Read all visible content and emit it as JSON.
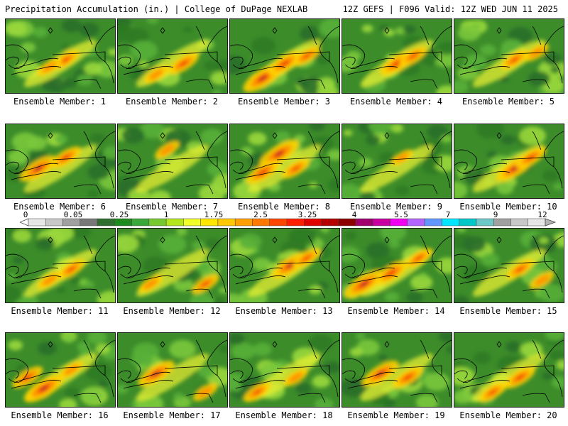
{
  "header": {
    "left": "Precipitation Accumulation (in.) | College of DuPage NEXLAB",
    "right": "12Z GEFS | F096 Valid: 12Z WED JUN 11 2025"
  },
  "member_label_prefix": "Ensemble Member: ",
  "members": [
    {
      "number": "1",
      "hot": [
        [
          0.55,
          0.55,
          0.6
        ],
        [
          0.4,
          0.65,
          0.5
        ]
      ]
    },
    {
      "number": "2",
      "hot": [
        [
          0.6,
          0.6,
          0.7
        ],
        [
          0.35,
          0.75,
          0.5
        ]
      ]
    },
    {
      "number": "3",
      "hot": [
        [
          0.3,
          0.8,
          1.0
        ],
        [
          0.5,
          0.6,
          0.8
        ],
        [
          0.7,
          0.5,
          0.6
        ]
      ]
    },
    {
      "number": "4",
      "hot": [
        [
          0.5,
          0.6,
          0.8
        ],
        [
          0.65,
          0.5,
          0.6
        ]
      ]
    },
    {
      "number": "5",
      "hot": [
        [
          0.55,
          0.55,
          0.6
        ],
        [
          0.75,
          0.45,
          0.5
        ]
      ]
    },
    {
      "number": "6",
      "hot": [
        [
          0.3,
          0.6,
          0.9
        ],
        [
          0.55,
          0.45,
          0.7
        ]
      ]
    },
    {
      "number": "7",
      "hot": [
        [
          0.45,
          0.35,
          0.5
        ]
      ]
    },
    {
      "number": "8",
      "hot": [
        [
          0.45,
          0.4,
          1.0
        ],
        [
          0.3,
          0.65,
          0.8
        ],
        [
          0.6,
          0.6,
          0.6
        ]
      ]
    },
    {
      "number": "9",
      "hot": [
        [
          0.55,
          0.45,
          0.4
        ]
      ]
    },
    {
      "number": "10",
      "hot": [
        [
          0.55,
          0.6,
          0.9
        ],
        [
          0.7,
          0.45,
          0.7
        ]
      ]
    },
    {
      "number": "11",
      "hot": [
        [
          0.6,
          0.55,
          0.6
        ],
        [
          0.4,
          0.7,
          0.5
        ]
      ]
    },
    {
      "number": "12",
      "hot": [
        [
          0.8,
          0.75,
          0.6
        ],
        [
          0.3,
          0.75,
          0.5
        ]
      ]
    },
    {
      "number": "13",
      "hot": [
        [
          0.55,
          0.5,
          0.9
        ],
        [
          0.7,
          0.4,
          0.6
        ]
      ]
    },
    {
      "number": "14",
      "hot": [
        [
          0.2,
          0.75,
          1.0
        ],
        [
          0.45,
          0.6,
          0.8
        ],
        [
          0.7,
          0.4,
          0.6
        ]
      ]
    },
    {
      "number": "15",
      "hot": [
        [
          0.6,
          0.55,
          0.6
        ],
        [
          0.8,
          0.7,
          0.5
        ]
      ]
    },
    {
      "number": "16",
      "hot": [
        [
          0.35,
          0.75,
          1.0
        ],
        [
          0.2,
          0.6,
          0.7
        ],
        [
          0.6,
          0.5,
          0.5
        ]
      ]
    },
    {
      "number": "17",
      "hot": [
        [
          0.35,
          0.55,
          0.9
        ],
        [
          0.8,
          0.8,
          0.5
        ]
      ]
    },
    {
      "number": "18",
      "hot": [
        [
          0.25,
          0.8,
          0.6
        ],
        [
          0.6,
          0.6,
          0.5
        ]
      ]
    },
    {
      "number": "19",
      "hot": [
        [
          0.35,
          0.55,
          0.9
        ],
        [
          0.6,
          0.6,
          0.7
        ]
      ]
    },
    {
      "number": "20",
      "hot": [
        [
          0.6,
          0.6,
          0.7
        ],
        [
          0.35,
          0.8,
          0.6
        ]
      ]
    }
  ],
  "legend": {
    "tick_labels": [
      "0",
      "0.05",
      "0.25",
      "1",
      "1.75",
      "2.5",
      "3.25",
      "4",
      "5.5",
      "7",
      "9",
      "12"
    ],
    "colors": [
      "#e6e6e6",
      "#c8c8c8",
      "#a0a0a0",
      "#787878",
      "#2e6e2e",
      "#1e8a1e",
      "#3ca83c",
      "#78c832",
      "#b4e61e",
      "#f0ff28",
      "#ffe600",
      "#ffc800",
      "#ffa000",
      "#ff7800",
      "#ff4600",
      "#ff1e00",
      "#e10000",
      "#b40000",
      "#8c0000",
      "#a0006e",
      "#c800a0",
      "#f000f0",
      "#b464ff",
      "#6496ff",
      "#00e6ff",
      "#00c8c8",
      "#6ec8c8",
      "#a0a0a0",
      "#c8c8c8",
      "#e6e6e6"
    ]
  }
}
